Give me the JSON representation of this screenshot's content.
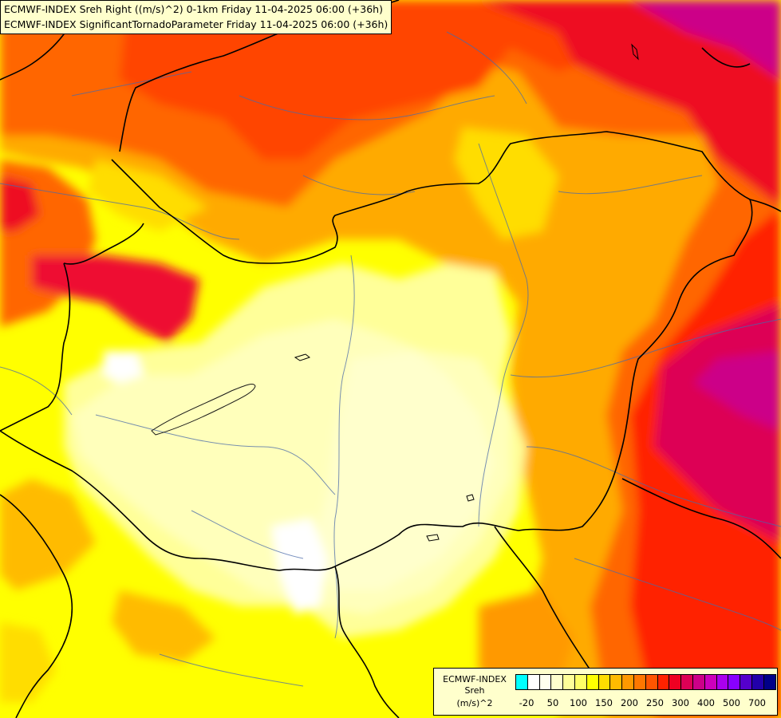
{
  "header": {
    "line1": "ECMWF-INDEX Sreh Right ((m/s)^2) 0-1km Friday 11-04-2025 06:00 (+36h)",
    "line2": "ECMWF-INDEX SignificantTornadoParameter Friday 11-04-2025 06:00 (+36h)"
  },
  "legend": {
    "title1": "ECMWF-INDEX",
    "title2": "Sreh",
    "title3": "(m/s)^2",
    "colors": [
      "#00ffff",
      "#ffffff",
      "#ffffee",
      "#ffffcc",
      "#ffff99",
      "#ffff66",
      "#ffff00",
      "#ffdd00",
      "#ffbb00",
      "#ff9900",
      "#ff7700",
      "#ff5500",
      "#ff2200",
      "#ee0022",
      "#dd0055",
      "#cc0088",
      "#cc00bb",
      "#aa00ee",
      "#8800ff",
      "#5500cc",
      "#2200aa",
      "#000088"
    ],
    "ticks": [
      "-20",
      "50",
      "100",
      "150",
      "200",
      "250",
      "300",
      "400",
      "500",
      "700"
    ]
  }
}
